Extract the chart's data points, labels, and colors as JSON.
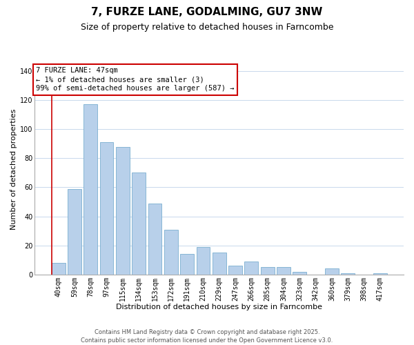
{
  "title": "7, FURZE LANE, GODALMING, GU7 3NW",
  "subtitle": "Size of property relative to detached houses in Farncombe",
  "xlabel": "Distribution of detached houses by size in Farncombe",
  "ylabel": "Number of detached properties",
  "categories": [
    "40sqm",
    "59sqm",
    "78sqm",
    "97sqm",
    "115sqm",
    "134sqm",
    "153sqm",
    "172sqm",
    "191sqm",
    "210sqm",
    "229sqm",
    "247sqm",
    "266sqm",
    "285sqm",
    "304sqm",
    "323sqm",
    "342sqm",
    "360sqm",
    "379sqm",
    "398sqm",
    "417sqm"
  ],
  "values": [
    8,
    59,
    117,
    91,
    88,
    70,
    49,
    31,
    14,
    19,
    15,
    6,
    9,
    5,
    5,
    2,
    0,
    4,
    1,
    0,
    1
  ],
  "bar_color": "#b8d0ea",
  "bar_edge_color": "#7aaed0",
  "annotation_box_text": "7 FURZE LANE: 47sqm\n← 1% of detached houses are smaller (3)\n99% of semi-detached houses are larger (587) →",
  "annotation_box_color": "#ffffff",
  "annotation_box_border_color": "#cc0000",
  "ylim": [
    0,
    145
  ],
  "yticks": [
    0,
    20,
    40,
    60,
    80,
    100,
    120,
    140
  ],
  "background_color": "#ffffff",
  "grid_color": "#c8d8ec",
  "footer_line1": "Contains HM Land Registry data © Crown copyright and database right 2025.",
  "footer_line2": "Contains public sector information licensed under the Open Government Licence v3.0.",
  "title_fontsize": 11,
  "subtitle_fontsize": 9,
  "xlabel_fontsize": 8,
  "ylabel_fontsize": 8,
  "tick_fontsize": 7,
  "footer_fontsize": 6,
  "annotation_fontsize": 7.5
}
